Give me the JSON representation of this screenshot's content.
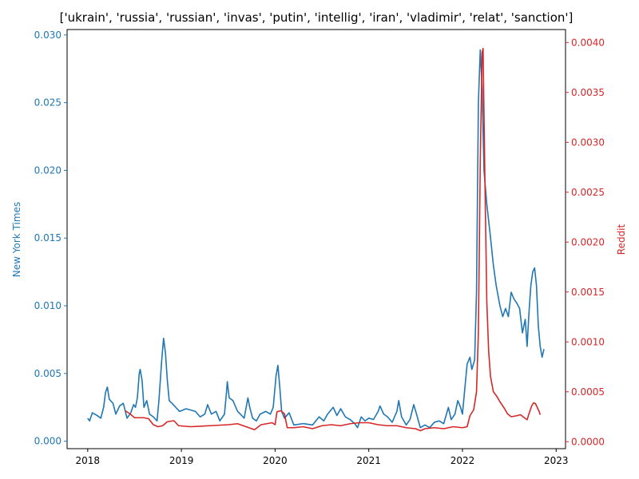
{
  "chart_data": {
    "type": "line",
    "title": "['ukrain', 'russia', 'russian', 'invas', 'putin', 'intellig', 'iran', 'vladimir', 'relat', 'sanction']",
    "xlabel": "",
    "xlim": [
      2017.78,
      2023.1
    ],
    "x_ticks": [
      {
        "value": 2018,
        "label": "2018"
      },
      {
        "value": 2019,
        "label": "2019"
      },
      {
        "value": 2020,
        "label": "2020"
      },
      {
        "value": 2021,
        "label": "2021"
      },
      {
        "value": 2022,
        "label": "2022"
      },
      {
        "value": 2023,
        "label": "2023"
      }
    ],
    "left_axis": {
      "label": "New York Times",
      "color": "#1f77b4",
      "ylim": [
        -0.00055,
        0.0304
      ],
      "ticks": [
        {
          "value": 0.0,
          "label": "0.000"
        },
        {
          "value": 0.005,
          "label": "0.005"
        },
        {
          "value": 0.01,
          "label": "0.010"
        },
        {
          "value": 0.015,
          "label": "0.015"
        },
        {
          "value": 0.02,
          "label": "0.020"
        },
        {
          "value": 0.025,
          "label": "0.025"
        },
        {
          "value": 0.03,
          "label": "0.030"
        }
      ]
    },
    "right_axis": {
      "label": "Reddit",
      "color": "#d62728",
      "ylim": [
        -7e-05,
        0.00413
      ],
      "ticks": [
        {
          "value": 0.0,
          "label": "0.0000"
        },
        {
          "value": 0.0005,
          "label": "0.0005"
        },
        {
          "value": 0.001,
          "label": "0.0010"
        },
        {
          "value": 0.0015,
          "label": "0.0015"
        },
        {
          "value": 0.002,
          "label": "0.0020"
        },
        {
          "value": 0.0025,
          "label": "0.0025"
        },
        {
          "value": 0.003,
          "label": "0.0030"
        },
        {
          "value": 0.0035,
          "label": "0.0035"
        },
        {
          "value": 0.004,
          "label": "0.0040"
        }
      ]
    },
    "series": [
      {
        "name": "New York Times",
        "axis": "left",
        "color": "#1f77b4",
        "points": [
          [
            2018.0,
            0.0017
          ],
          [
            2018.02,
            0.0015
          ],
          [
            2018.05,
            0.0021
          ],
          [
            2018.1,
            0.0019
          ],
          [
            2018.14,
            0.0017
          ],
          [
            2018.17,
            0.0025
          ],
          [
            2018.19,
            0.0036
          ],
          [
            2018.21,
            0.004
          ],
          [
            2018.23,
            0.0031
          ],
          [
            2018.27,
            0.0028
          ],
          [
            2018.3,
            0.002
          ],
          [
            2018.34,
            0.0026
          ],
          [
            2018.38,
            0.0028
          ],
          [
            2018.42,
            0.0017
          ],
          [
            2018.46,
            0.0021
          ],
          [
            2018.49,
            0.0027
          ],
          [
            2018.51,
            0.0025
          ],
          [
            2018.53,
            0.0032
          ],
          [
            2018.55,
            0.005
          ],
          [
            2018.56,
            0.0053
          ],
          [
            2018.58,
            0.0045
          ],
          [
            2018.6,
            0.0025
          ],
          [
            2018.63,
            0.003
          ],
          [
            2018.66,
            0.002
          ],
          [
            2018.7,
            0.0018
          ],
          [
            2018.74,
            0.0015
          ],
          [
            2018.76,
            0.003
          ],
          [
            2018.79,
            0.006
          ],
          [
            2018.81,
            0.0076
          ],
          [
            2018.83,
            0.0065
          ],
          [
            2018.85,
            0.0045
          ],
          [
            2018.87,
            0.003
          ],
          [
            2018.9,
            0.0028
          ],
          [
            2018.94,
            0.0025
          ],
          [
            2018.98,
            0.0022
          ],
          [
            2019.05,
            0.0024
          ],
          [
            2019.1,
            0.0023
          ],
          [
            2019.15,
            0.0022
          ],
          [
            2019.2,
            0.0018
          ],
          [
            2019.25,
            0.002
          ],
          [
            2019.28,
            0.0027
          ],
          [
            2019.32,
            0.002
          ],
          [
            2019.37,
            0.0022
          ],
          [
            2019.41,
            0.0015
          ],
          [
            2019.46,
            0.002
          ],
          [
            2019.48,
            0.0035
          ],
          [
            2019.49,
            0.0044
          ],
          [
            2019.51,
            0.0032
          ],
          [
            2019.55,
            0.003
          ],
          [
            2019.6,
            0.0022
          ],
          [
            2019.63,
            0.002
          ],
          [
            2019.67,
            0.0017
          ],
          [
            2019.71,
            0.0032
          ],
          [
            2019.73,
            0.0025
          ],
          [
            2019.76,
            0.0017
          ],
          [
            2019.8,
            0.0015
          ],
          [
            2019.84,
            0.002
          ],
          [
            2019.9,
            0.0022
          ],
          [
            2019.95,
            0.002
          ],
          [
            2019.98,
            0.0025
          ],
          [
            2020.01,
            0.0048
          ],
          [
            2020.03,
            0.0056
          ],
          [
            2020.05,
            0.004
          ],
          [
            2020.07,
            0.0022
          ],
          [
            2020.1,
            0.0017
          ],
          [
            2020.15,
            0.0021
          ],
          [
            2020.2,
            0.0012
          ],
          [
            2020.3,
            0.0013
          ],
          [
            2020.4,
            0.0012
          ],
          [
            2020.47,
            0.0018
          ],
          [
            2020.52,
            0.0015
          ],
          [
            2020.56,
            0.002
          ],
          [
            2020.62,
            0.0025
          ],
          [
            2020.66,
            0.0019
          ],
          [
            2020.7,
            0.0024
          ],
          [
            2020.75,
            0.0018
          ],
          [
            2020.8,
            0.0016
          ],
          [
            2020.85,
            0.0013
          ],
          [
            2020.88,
            0.001
          ],
          [
            2020.92,
            0.0018
          ],
          [
            2020.96,
            0.0015
          ],
          [
            2021.0,
            0.0017
          ],
          [
            2021.05,
            0.0016
          ],
          [
            2021.1,
            0.0022
          ],
          [
            2021.12,
            0.0026
          ],
          [
            2021.16,
            0.002
          ],
          [
            2021.2,
            0.0018
          ],
          [
            2021.25,
            0.0014
          ],
          [
            2021.3,
            0.0022
          ],
          [
            2021.32,
            0.003
          ],
          [
            2021.35,
            0.0018
          ],
          [
            2021.4,
            0.0012
          ],
          [
            2021.44,
            0.0016
          ],
          [
            2021.48,
            0.0027
          ],
          [
            2021.51,
            0.002
          ],
          [
            2021.55,
            0.001
          ],
          [
            2021.6,
            0.0012
          ],
          [
            2021.65,
            0.001
          ],
          [
            2021.7,
            0.0014
          ],
          [
            2021.75,
            0.0015
          ],
          [
            2021.8,
            0.0013
          ],
          [
            2021.85,
            0.0025
          ],
          [
            2021.88,
            0.0016
          ],
          [
            2021.92,
            0.002
          ],
          [
            2021.95,
            0.003
          ],
          [
            2021.98,
            0.0025
          ],
          [
            2022.0,
            0.002
          ],
          [
            2022.02,
            0.0035
          ],
          [
            2022.05,
            0.0057
          ],
          [
            2022.08,
            0.0062
          ],
          [
            2022.1,
            0.0053
          ],
          [
            2022.13,
            0.006
          ],
          [
            2022.15,
            0.011
          ],
          [
            2022.17,
            0.025
          ],
          [
            2022.19,
            0.0289
          ],
          [
            2022.21,
            0.026
          ],
          [
            2022.23,
            0.02
          ],
          [
            2022.26,
            0.0175
          ],
          [
            2022.3,
            0.015
          ],
          [
            2022.33,
            0.013
          ],
          [
            2022.36,
            0.0115
          ],
          [
            2022.4,
            0.01
          ],
          [
            2022.43,
            0.0092
          ],
          [
            2022.46,
            0.0098
          ],
          [
            2022.49,
            0.0092
          ],
          [
            2022.52,
            0.011
          ],
          [
            2022.55,
            0.0105
          ],
          [
            2022.58,
            0.0102
          ],
          [
            2022.61,
            0.0098
          ],
          [
            2022.64,
            0.008
          ],
          [
            2022.67,
            0.009
          ],
          [
            2022.69,
            0.007
          ],
          [
            2022.71,
            0.0095
          ],
          [
            2022.73,
            0.0115
          ],
          [
            2022.75,
            0.0125
          ],
          [
            2022.77,
            0.0128
          ],
          [
            2022.79,
            0.0115
          ],
          [
            2022.81,
            0.0085
          ],
          [
            2022.83,
            0.007
          ],
          [
            2022.85,
            0.0062
          ],
          [
            2022.87,
            0.0068
          ]
        ]
      },
      {
        "name": "Reddit",
        "axis": "right",
        "color": "#d62728",
        "points": [
          [
            2018.4,
            0.00031
          ],
          [
            2018.45,
            0.00028
          ],
          [
            2018.5,
            0.00024
          ],
          [
            2018.6,
            0.00024
          ],
          [
            2018.65,
            0.00023
          ],
          [
            2018.7,
            0.00017
          ],
          [
            2018.75,
            0.00015
          ],
          [
            2018.8,
            0.00016
          ],
          [
            2018.85,
            0.0002
          ],
          [
            2018.92,
            0.00021
          ],
          [
            2018.97,
            0.00016
          ],
          [
            2019.1,
            0.00015
          ],
          [
            2019.3,
            0.00016
          ],
          [
            2019.5,
            0.00017
          ],
          [
            2019.6,
            0.00018
          ],
          [
            2019.72,
            0.00014
          ],
          [
            2019.78,
            0.00012
          ],
          [
            2019.85,
            0.00017
          ],
          [
            2019.97,
            0.00019
          ],
          [
            2020.0,
            0.00017
          ],
          [
            2020.02,
            0.0003
          ],
          [
            2020.06,
            0.00031
          ],
          [
            2020.1,
            0.00028
          ],
          [
            2020.13,
            0.00014
          ],
          [
            2020.2,
            0.00014
          ],
          [
            2020.3,
            0.00015
          ],
          [
            2020.4,
            0.00013
          ],
          [
            2020.5,
            0.00016
          ],
          [
            2020.6,
            0.00017
          ],
          [
            2020.7,
            0.00016
          ],
          [
            2020.8,
            0.00018
          ],
          [
            2020.9,
            0.00019
          ],
          [
            2021.0,
            0.00019
          ],
          [
            2021.1,
            0.00017
          ],
          [
            2021.2,
            0.00016
          ],
          [
            2021.3,
            0.00016
          ],
          [
            2021.4,
            0.00014
          ],
          [
            2021.5,
            0.00013
          ],
          [
            2021.55,
            0.00011
          ],
          [
            2021.6,
            0.00013
          ],
          [
            2021.7,
            0.00014
          ],
          [
            2021.8,
            0.00013
          ],
          [
            2021.9,
            0.00015
          ],
          [
            2022.0,
            0.00014
          ],
          [
            2022.05,
            0.00015
          ],
          [
            2022.08,
            0.00026
          ],
          [
            2022.12,
            0.00032
          ],
          [
            2022.15,
            0.0005
          ],
          [
            2022.17,
            0.0011
          ],
          [
            2022.19,
            0.0028
          ],
          [
            2022.21,
            0.0039
          ],
          [
            2022.22,
            0.00394
          ],
          [
            2022.24,
            0.0026
          ],
          [
            2022.26,
            0.0014
          ],
          [
            2022.28,
            0.0009
          ],
          [
            2022.3,
            0.00065
          ],
          [
            2022.33,
            0.0005
          ],
          [
            2022.37,
            0.00045
          ],
          [
            2022.4,
            0.0004
          ],
          [
            2022.45,
            0.00033
          ],
          [
            2022.48,
            0.00028
          ],
          [
            2022.52,
            0.00025
          ],
          [
            2022.58,
            0.00026
          ],
          [
            2022.62,
            0.00027
          ],
          [
            2022.66,
            0.00024
          ],
          [
            2022.69,
            0.00022
          ],
          [
            2022.71,
            0.00028
          ],
          [
            2022.74,
            0.00036
          ],
          [
            2022.76,
            0.00039
          ],
          [
            2022.78,
            0.00038
          ],
          [
            2022.8,
            0.00034
          ],
          [
            2022.82,
            0.0003
          ],
          [
            2022.83,
            0.00027
          ]
        ]
      }
    ]
  }
}
